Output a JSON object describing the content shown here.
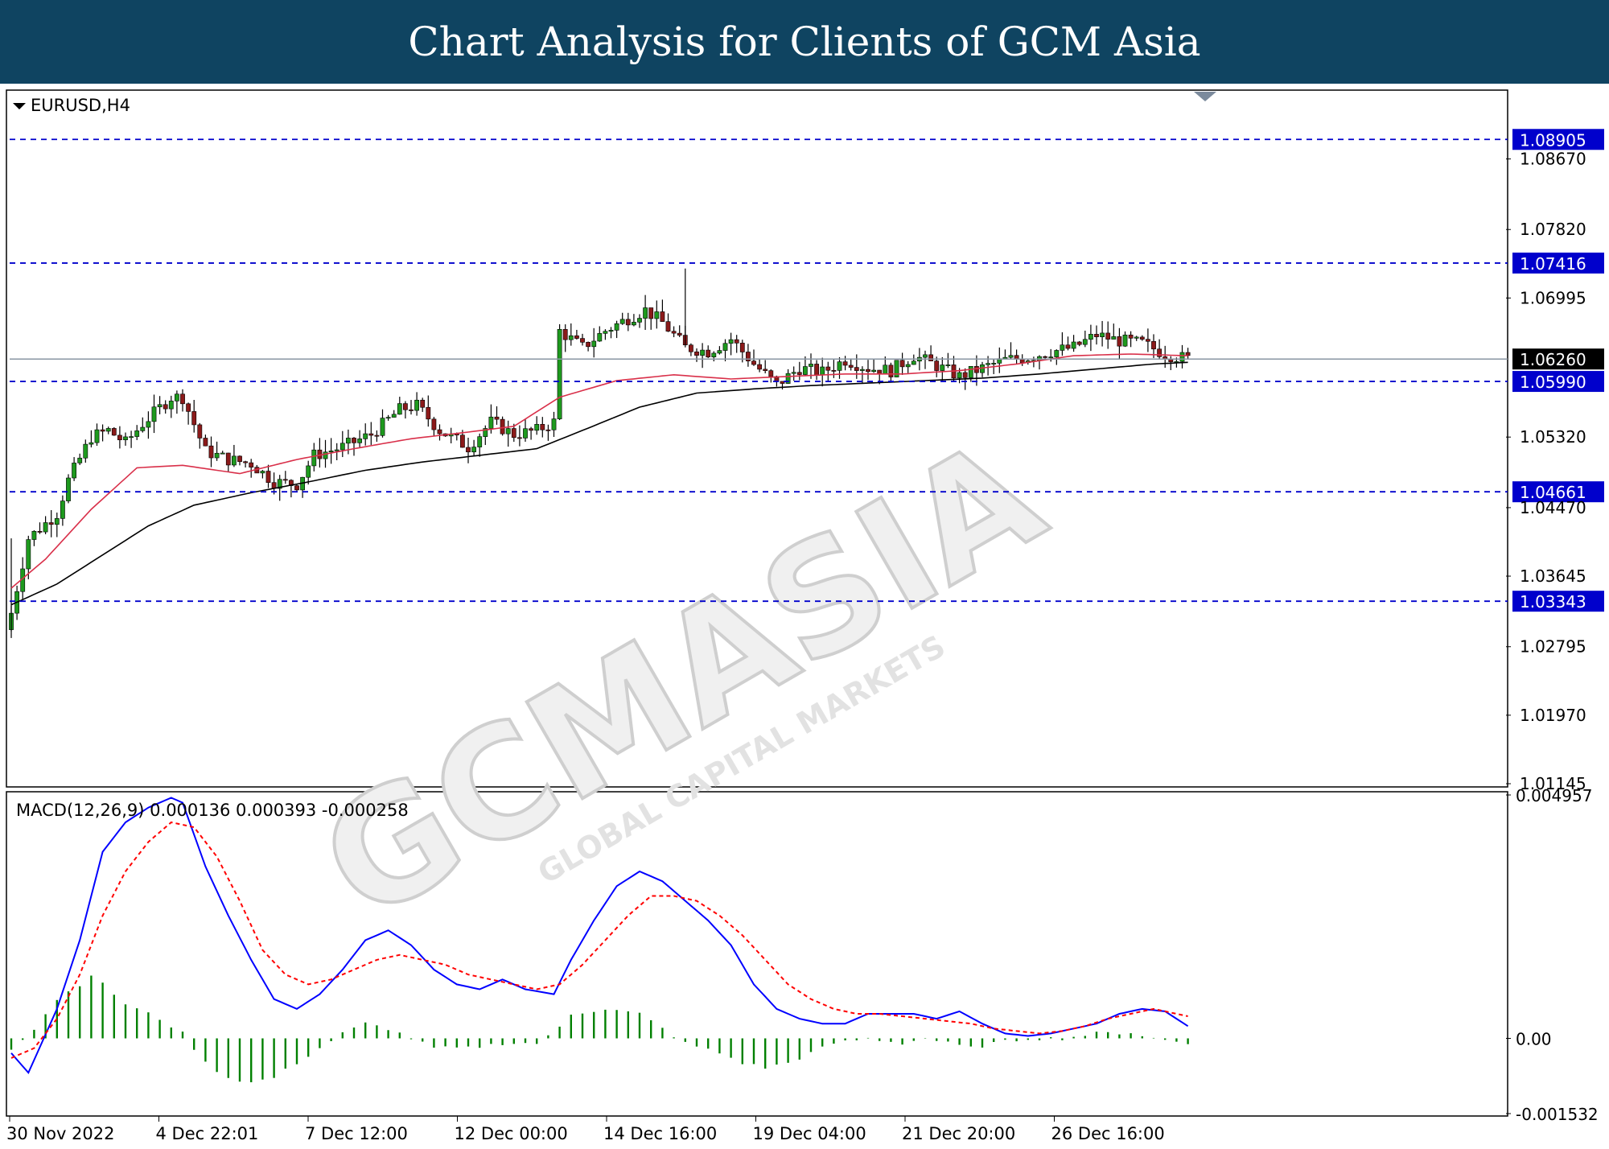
{
  "header": {
    "title": "Chart Analysis for Clients of GCM Asia"
  },
  "colors": {
    "header_bg": "#0f4461",
    "bull_candle": "#1e9a1e",
    "bear_candle": "#8b1a1a",
    "ma_fast": "#d9304a",
    "ma_slow": "#000000",
    "level_line": "#0000cc",
    "macd_line": "#0000ff",
    "signal_line": "#ff0000",
    "histogram": "#008000",
    "level_label_bg": "#0000cc",
    "current_price_bg": "#000000",
    "watermark": "#d8d8d8"
  },
  "icons": {
    "symbol_menu": "triangle-down-icon",
    "shift_marker": "triangle-down-icon"
  },
  "watermark": {
    "brand": "GCMASIA",
    "tagline": "GLOBAL CAPITAL MARKETS"
  },
  "chart_data": [
    {
      "type": "candlestick",
      "title": "EURUSD,H4",
      "ylim": [
        1.01145,
        1.0946
      ],
      "y_ticks": [
        "1.08670",
        "1.07820",
        "1.06995",
        "1.05320",
        "1.04470",
        "1.03645",
        "1.02795",
        "1.01970",
        "1.01145"
      ],
      "x_ticks": [
        "30 Nov 2022",
        "4 Dec 22:01",
        "7 Dec 12:00",
        "12 Dec 00:00",
        "14 Dec 16:00",
        "19 Dec 04:00",
        "21 Dec 20:00",
        "26 Dec 16:00"
      ],
      "levels": [
        {
          "label": "1.08905",
          "value": 1.08905
        },
        {
          "label": "1.07416",
          "value": 1.07416
        },
        {
          "label": "1.05990",
          "value": 1.0599
        },
        {
          "label": "1.04661",
          "value": 1.04661
        },
        {
          "label": "1.03343",
          "value": 1.03343
        }
      ],
      "current_price": {
        "label": "1.06260",
        "value": 1.0626
      },
      "moving_averages": [
        {
          "color": "#d9304a",
          "points": [
            [
              0,
              1.035
            ],
            [
              6,
              1.0385
            ],
            [
              14,
              1.0445
            ],
            [
              22,
              1.0495
            ],
            [
              30,
              1.0498
            ],
            [
              40,
              1.0488
            ],
            [
              50,
              1.0505
            ],
            [
              60,
              1.0518
            ],
            [
              70,
              1.053
            ],
            [
              80,
              1.0538
            ],
            [
              88,
              1.0545
            ],
            [
              96,
              1.058
            ],
            [
              106,
              1.06
            ],
            [
              116,
              1.0607
            ],
            [
              126,
              1.0602
            ],
            [
              136,
              1.0605
            ],
            [
              146,
              1.0608
            ],
            [
              156,
              1.0608
            ],
            [
              166,
              1.0612
            ],
            [
              176,
              1.062
            ],
            [
              186,
              1.063
            ],
            [
              196,
              1.0632
            ],
            [
              206,
              1.063
            ]
          ]
        },
        {
          "color": "#000000",
          "points": [
            [
              0,
              1.033
            ],
            [
              8,
              1.0355
            ],
            [
              16,
              1.039
            ],
            [
              24,
              1.0425
            ],
            [
              32,
              1.045
            ],
            [
              42,
              1.0465
            ],
            [
              52,
              1.0478
            ],
            [
              62,
              1.0492
            ],
            [
              72,
              1.0502
            ],
            [
              82,
              1.051
            ],
            [
              92,
              1.0518
            ],
            [
              100,
              1.054
            ],
            [
              110,
              1.0568
            ],
            [
              120,
              1.0585
            ],
            [
              130,
              1.059
            ],
            [
              140,
              1.0594
            ],
            [
              150,
              1.0597
            ],
            [
              160,
              1.06
            ],
            [
              170,
              1.0603
            ],
            [
              180,
              1.0608
            ],
            [
              190,
              1.0614
            ],
            [
              200,
              1.062
            ],
            [
              206,
              1.0622
            ]
          ]
        }
      ],
      "anchors": [
        [
          0,
          1.032
        ],
        [
          3,
          1.041
        ],
        [
          8,
          1.044
        ],
        [
          10,
          1.048
        ],
        [
          14,
          1.0532
        ],
        [
          17,
          1.054
        ],
        [
          20,
          1.0525
        ],
        [
          23,
          1.0548
        ],
        [
          28,
          1.058
        ],
        [
          30,
          1.058
        ],
        [
          34,
          1.0515
        ],
        [
          38,
          1.0505
        ],
        [
          42,
          1.05
        ],
        [
          46,
          1.0478
        ],
        [
          50,
          1.0475
        ],
        [
          53,
          1.051
        ],
        [
          58,
          1.052
        ],
        [
          63,
          1.0535
        ],
        [
          68,
          1.0565
        ],
        [
          71,
          1.057
        ],
        [
          75,
          1.054
        ],
        [
          80,
          1.052
        ],
        [
          84,
          1.055
        ],
        [
          88,
          1.0535
        ],
        [
          92,
          1.054
        ],
        [
          95,
          1.055
        ],
        [
          96,
          1.066
        ],
        [
          100,
          1.064
        ],
        [
          104,
          1.066
        ],
        [
          108,
          1.0675
        ],
        [
          111,
          1.0685
        ],
        [
          114,
          1.067
        ],
        [
          118,
          1.064
        ],
        [
          122,
          1.0635
        ],
        [
          126,
          1.065
        ],
        [
          130,
          1.062
        ],
        [
          134,
          1.0595
        ],
        [
          138,
          1.0615
        ],
        [
          142,
          1.061
        ],
        [
          146,
          1.0625
        ],
        [
          150,
          1.0615
        ],
        [
          154,
          1.0612
        ],
        [
          158,
          1.063
        ],
        [
          162,
          1.0618
        ],
        [
          166,
          1.0605
        ],
        [
          170,
          1.0615
        ],
        [
          174,
          1.0625
        ],
        [
          178,
          1.0628
        ],
        [
          182,
          1.0635
        ],
        [
          186,
          1.064
        ],
        [
          190,
          1.0655
        ],
        [
          194,
          1.0648
        ],
        [
          198,
          1.0645
        ],
        [
          202,
          1.0632
        ],
        [
          206,
          1.0626
        ]
      ]
    },
    {
      "type": "line",
      "title": "MACD(12,26,9) 0.000136 0.000393 -0.000258",
      "ylim": [
        -0.001532,
        0.004957
      ],
      "y_ticks": [
        "0.004957",
        "0.00",
        "-0.001532"
      ],
      "zero_label": "0.00",
      "series": [
        {
          "role": "macd",
          "color": "#0000ff",
          "points": [
            [
              0,
              -0.0003
            ],
            [
              3,
              -0.0007
            ],
            [
              8,
              0.0006
            ],
            [
              12,
              0.002
            ],
            [
              16,
              0.0038
            ],
            [
              20,
              0.0044
            ],
            [
              24,
              0.0047
            ],
            [
              28,
              0.0049
            ],
            [
              30,
              0.0048
            ],
            [
              34,
              0.0035
            ],
            [
              38,
              0.0025
            ],
            [
              42,
              0.0016
            ],
            [
              46,
              0.0008
            ],
            [
              50,
              0.0006
            ],
            [
              54,
              0.0009
            ],
            [
              58,
              0.0014
            ],
            [
              62,
              0.002
            ],
            [
              66,
              0.0022
            ],
            [
              70,
              0.0019
            ],
            [
              74,
              0.0014
            ],
            [
              78,
              0.0011
            ],
            [
              82,
              0.001
            ],
            [
              86,
              0.0012
            ],
            [
              90,
              0.001
            ],
            [
              95,
              0.0009
            ],
            [
              98,
              0.0016
            ],
            [
              102,
              0.0024
            ],
            [
              106,
              0.0031
            ],
            [
              110,
              0.0034
            ],
            [
              114,
              0.0032
            ],
            [
              118,
              0.0028
            ],
            [
              122,
              0.0024
            ],
            [
              126,
              0.0019
            ],
            [
              130,
              0.0011
            ],
            [
              134,
              0.0006
            ],
            [
              138,
              0.0004
            ],
            [
              142,
              0.0003
            ],
            [
              146,
              0.0003
            ],
            [
              150,
              0.0005
            ],
            [
              154,
              0.0005
            ],
            [
              158,
              0.0005
            ],
            [
              162,
              0.0004
            ],
            [
              166,
              0.00055
            ],
            [
              170,
              0.0003
            ],
            [
              174,
              0.0001
            ],
            [
              178,
              5e-05
            ],
            [
              182,
              0.0001
            ],
            [
              186,
              0.0002
            ],
            [
              190,
              0.0003
            ],
            [
              194,
              0.0005
            ],
            [
              198,
              0.0006
            ],
            [
              202,
              0.00055
            ],
            [
              206,
              0.00025
            ]
          ]
        },
        {
          "role": "signal",
          "color": "#ff0000",
          "points": [
            [
              0,
              -0.0004
            ],
            [
              4,
              -0.0002
            ],
            [
              8,
              0.0004
            ],
            [
              12,
              0.0013
            ],
            [
              16,
              0.0025
            ],
            [
              20,
              0.0034
            ],
            [
              24,
              0.004
            ],
            [
              28,
              0.0044
            ],
            [
              32,
              0.0043
            ],
            [
              36,
              0.0037
            ],
            [
              40,
              0.0028
            ],
            [
              44,
              0.0018
            ],
            [
              48,
              0.0013
            ],
            [
              52,
              0.0011
            ],
            [
              56,
              0.0012
            ],
            [
              60,
              0.0014
            ],
            [
              64,
              0.0016
            ],
            [
              68,
              0.0017
            ],
            [
              72,
              0.0016
            ],
            [
              76,
              0.0015
            ],
            [
              80,
              0.0013
            ],
            [
              84,
              0.0012
            ],
            [
              88,
              0.0011
            ],
            [
              92,
              0.001
            ],
            [
              96,
              0.0011
            ],
            [
              100,
              0.0015
            ],
            [
              104,
              0.002
            ],
            [
              108,
              0.0025
            ],
            [
              112,
              0.0029
            ],
            [
              116,
              0.0029
            ],
            [
              120,
              0.0028
            ],
            [
              124,
              0.0025
            ],
            [
              128,
              0.0021
            ],
            [
              132,
              0.0016
            ],
            [
              136,
              0.0011
            ],
            [
              140,
              0.0008
            ],
            [
              144,
              0.0006
            ],
            [
              148,
              0.0005
            ],
            [
              152,
              0.0005
            ],
            [
              156,
              0.00045
            ],
            [
              160,
              0.0004
            ],
            [
              164,
              0.00035
            ],
            [
              168,
              0.0003
            ],
            [
              172,
              0.0002
            ],
            [
              176,
              0.00015
            ],
            [
              180,
              0.0001
            ],
            [
              184,
              0.00015
            ],
            [
              188,
              0.00025
            ],
            [
              192,
              0.0004
            ],
            [
              196,
              0.0005
            ],
            [
              200,
              0.0006
            ],
            [
              204,
              0.0005
            ],
            [
              206,
              0.00045
            ]
          ]
        }
      ],
      "histogram": {
        "color": "#008000",
        "points": [
          [
            0,
            -0.0002
          ],
          [
            4,
            0.0002
          ],
          [
            8,
            0.0008
          ],
          [
            12,
            0.0011
          ],
          [
            14,
            0.0013
          ],
          [
            16,
            0.0011
          ],
          [
            20,
            0.0007
          ],
          [
            26,
            0.0004
          ],
          [
            30,
            0.0001
          ],
          [
            34,
            -0.0005
          ],
          [
            38,
            -0.0008
          ],
          [
            42,
            -0.0009
          ],
          [
            46,
            -0.0008
          ],
          [
            50,
            -0.0005
          ],
          [
            54,
            -0.0002
          ],
          [
            58,
            0.0001
          ],
          [
            62,
            0.0003
          ],
          [
            66,
            0.0002
          ],
          [
            70,
            0.0
          ],
          [
            74,
            -0.0002
          ],
          [
            80,
            -0.0002
          ],
          [
            86,
            -0.0001
          ],
          [
            92,
            -0.0001
          ],
          [
            95,
            0.0001
          ],
          [
            98,
            0.0005
          ],
          [
            104,
            0.0006
          ],
          [
            110,
            0.0005
          ],
          [
            114,
            0.0002
          ],
          [
            118,
            -0.0001
          ],
          [
            124,
            -0.0003
          ],
          [
            128,
            -0.0005
          ],
          [
            132,
            -0.0006
          ],
          [
            136,
            -0.0005
          ],
          [
            140,
            -0.0003
          ],
          [
            144,
            -0.0001
          ],
          [
            150,
            0.0
          ],
          [
            156,
            -0.0001
          ],
          [
            160,
            0.0
          ],
          [
            164,
            -0.0001
          ],
          [
            168,
            -0.0002
          ],
          [
            172,
            -0.0001
          ],
          [
            178,
            0.0
          ],
          [
            184,
            0.0
          ],
          [
            190,
            0.0001
          ],
          [
            196,
            0.00012
          ],
          [
            200,
            0.0
          ],
          [
            206,
            -0.0001
          ]
        ]
      }
    }
  ]
}
